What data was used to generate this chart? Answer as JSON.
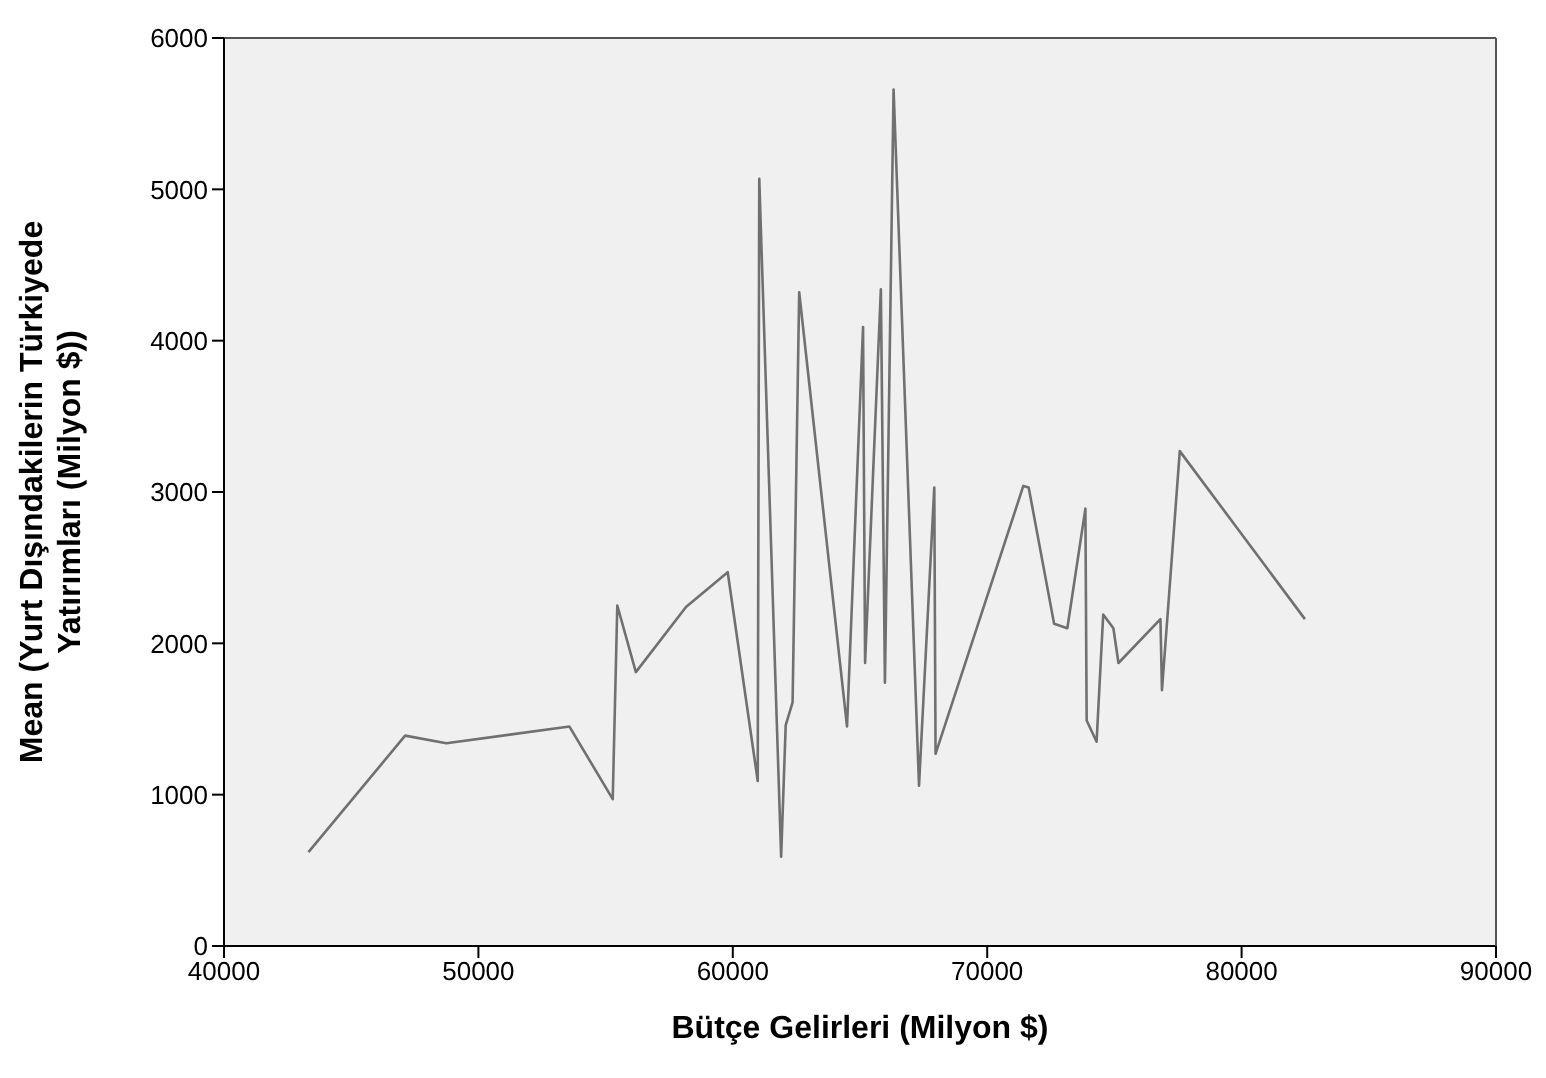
{
  "chart_data": {
    "type": "line",
    "xlabel": "Bütçe Gelirleri (Milyon $)",
    "ylabel": "Mean (Yurt Dışındakilerin Türkiyede Yatırımları (Milyon $))",
    "x": [
      43320,
      47120,
      48740,
      53580,
      55280,
      55460,
      56190,
      58160,
      59800,
      60980,
      61040,
      61900,
      62080,
      62350,
      62610,
      64490,
      65120,
      65200,
      65820,
      65980,
      66320,
      67320,
      67920,
      67970,
      71420,
      71630,
      72630,
      73150,
      73860,
      73910,
      74300,
      74560,
      74960,
      75160,
      76810,
      76870,
      77570,
      82490
    ],
    "series": [
      {
        "color": "#707070",
        "values": [
          620,
          1390,
          1340,
          1450,
          970,
          2250,
          1810,
          2240,
          2470,
          1090,
          5070,
          590,
          1460,
          1610,
          4320,
          1450,
          4090,
          1870,
          4340,
          1740,
          5660,
          1060,
          3030,
          1270,
          3040,
          3030,
          2130,
          2100,
          2890,
          1490,
          1350,
          2190,
          2100,
          1870,
          2160,
          1690,
          3270,
          2160
        ]
      }
    ],
    "xlim": [
      40000,
      90000
    ],
    "xticks": [
      40000,
      50000,
      60000,
      70000,
      80000,
      90000
    ],
    "ylim": [
      0,
      6000
    ],
    "yticks": [
      0,
      1000,
      2000,
      3000,
      4000,
      5000,
      6000
    ],
    "grid": false,
    "legend": false,
    "marker": "none",
    "line_style": "solid"
  }
}
